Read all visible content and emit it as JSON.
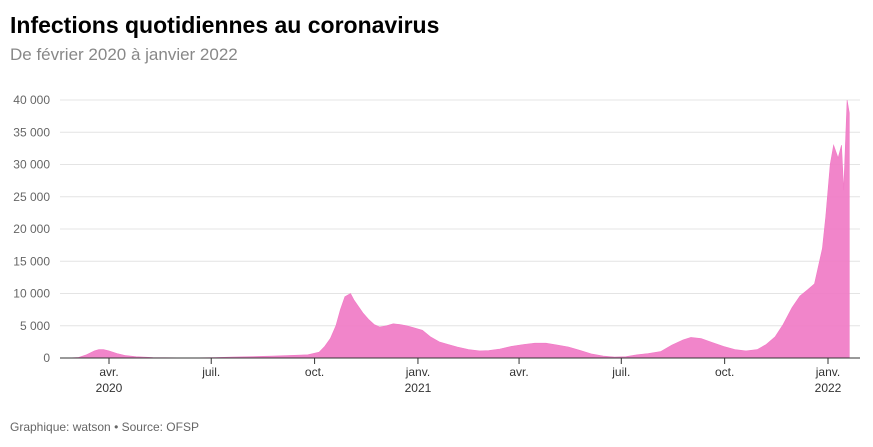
{
  "header": {
    "title": "Infections quotidiennes au coronavirus",
    "subtitle": "De février 2020 à janvier 2022"
  },
  "footer": {
    "credit": "Graphique: watson • Source: OFSP"
  },
  "colors": {
    "series": "#f07bc6",
    "grid": "#e4e4e4",
    "axis": "#333333"
  },
  "chart_data": {
    "type": "area",
    "title": "Infections quotidiennes au coronavirus",
    "subtitle": "De février 2020 à janvier 2022",
    "xlabel": "",
    "ylabel": "",
    "ylim": [
      0,
      42000
    ],
    "xlim": [
      "2020-02-24",
      "2022-01-20"
    ],
    "grid": true,
    "legend": "none",
    "y_ticks": [
      {
        "value": 0,
        "label": "0"
      },
      {
        "value": 5000,
        "label": "5 000"
      },
      {
        "value": 10000,
        "label": "10 000"
      },
      {
        "value": 15000,
        "label": "15 000"
      },
      {
        "value": 20000,
        "label": "20 000"
      },
      {
        "value": 25000,
        "label": "25 000"
      },
      {
        "value": 30000,
        "label": "30 000"
      },
      {
        "value": 35000,
        "label": "35 000"
      },
      {
        "value": 40000,
        "label": "40 000"
      }
    ],
    "x_ticks": [
      {
        "date": "2020-04-01",
        "label": "avr.",
        "sublabel": "2020"
      },
      {
        "date": "2020-07-01",
        "label": "juil.",
        "sublabel": ""
      },
      {
        "date": "2020-10-01",
        "label": "oct.",
        "sublabel": ""
      },
      {
        "date": "2021-01-01",
        "label": "janv.",
        "sublabel": "2021"
      },
      {
        "date": "2021-04-01",
        "label": "avr.",
        "sublabel": ""
      },
      {
        "date": "2021-07-01",
        "label": "juil.",
        "sublabel": ""
      },
      {
        "date": "2021-10-01",
        "label": "oct.",
        "sublabel": ""
      },
      {
        "date": "2022-01-01",
        "label": "janv.",
        "sublabel": "2022"
      }
    ],
    "series": [
      {
        "values": [
          [
            "2020-02-24",
            0
          ],
          [
            "2020-03-05",
            100
          ],
          [
            "2020-03-12",
            500
          ],
          [
            "2020-03-19",
            1100
          ],
          [
            "2020-03-23",
            1300
          ],
          [
            "2020-03-27",
            1300
          ],
          [
            "2020-04-01",
            1100
          ],
          [
            "2020-04-08",
            700
          ],
          [
            "2020-04-15",
            400
          ],
          [
            "2020-04-25",
            200
          ],
          [
            "2020-05-10",
            60
          ],
          [
            "2020-06-01",
            30
          ],
          [
            "2020-06-20",
            30
          ],
          [
            "2020-07-05",
            80
          ],
          [
            "2020-07-20",
            140
          ],
          [
            "2020-08-05",
            200
          ],
          [
            "2020-08-25",
            300
          ],
          [
            "2020-09-10",
            400
          ],
          [
            "2020-09-25",
            500
          ],
          [
            "2020-10-05",
            900
          ],
          [
            "2020-10-10",
            1800
          ],
          [
            "2020-10-15",
            3000
          ],
          [
            "2020-10-20",
            5000
          ],
          [
            "2020-10-24",
            7500
          ],
          [
            "2020-10-28",
            9500
          ],
          [
            "2020-11-02",
            10000
          ],
          [
            "2020-11-05",
            9000
          ],
          [
            "2020-11-09",
            8000
          ],
          [
            "2020-11-13",
            7000
          ],
          [
            "2020-11-18",
            6000
          ],
          [
            "2020-11-23",
            5200
          ],
          [
            "2020-11-28",
            4800
          ],
          [
            "2020-12-04",
            5000
          ],
          [
            "2020-12-10",
            5300
          ],
          [
            "2020-12-16",
            5200
          ],
          [
            "2020-12-22",
            5000
          ],
          [
            "2020-12-28",
            4700
          ],
          [
            "2021-01-05",
            4300
          ],
          [
            "2021-01-12",
            3300
          ],
          [
            "2021-01-20",
            2500
          ],
          [
            "2021-01-28",
            2100
          ],
          [
            "2021-02-05",
            1700
          ],
          [
            "2021-02-15",
            1300
          ],
          [
            "2021-02-25",
            1100
          ],
          [
            "2021-03-05",
            1150
          ],
          [
            "2021-03-15",
            1400
          ],
          [
            "2021-03-25",
            1800
          ],
          [
            "2021-04-05",
            2100
          ],
          [
            "2021-04-15",
            2300
          ],
          [
            "2021-04-25",
            2300
          ],
          [
            "2021-05-05",
            2000
          ],
          [
            "2021-05-15",
            1700
          ],
          [
            "2021-05-25",
            1200
          ],
          [
            "2021-06-05",
            600
          ],
          [
            "2021-06-15",
            300
          ],
          [
            "2021-06-25",
            150
          ],
          [
            "2021-07-05",
            200
          ],
          [
            "2021-07-15",
            500
          ],
          [
            "2021-07-25",
            700
          ],
          [
            "2021-08-05",
            1000
          ],
          [
            "2021-08-15",
            2000
          ],
          [
            "2021-08-25",
            2800
          ],
          [
            "2021-09-01",
            3200
          ],
          [
            "2021-09-10",
            3000
          ],
          [
            "2021-09-20",
            2400
          ],
          [
            "2021-09-30",
            1800
          ],
          [
            "2021-10-10",
            1300
          ],
          [
            "2021-10-20",
            1100
          ],
          [
            "2021-10-30",
            1300
          ],
          [
            "2021-11-07",
            2100
          ],
          [
            "2021-11-15",
            3300
          ],
          [
            "2021-11-22",
            5200
          ],
          [
            "2021-11-30",
            7800
          ],
          [
            "2021-12-07",
            9600
          ],
          [
            "2021-12-14",
            10600
          ],
          [
            "2021-12-20",
            11500
          ],
          [
            "2021-12-27",
            17000
          ],
          [
            "2021-12-30",
            22000
          ],
          [
            "2022-01-03",
            30000
          ],
          [
            "2022-01-06",
            33000
          ],
          [
            "2022-01-10",
            31000
          ],
          [
            "2022-01-13",
            33000
          ],
          [
            "2022-01-15",
            26000
          ],
          [
            "2022-01-18",
            40000
          ],
          [
            "2022-01-20",
            38000
          ]
        ]
      }
    ]
  }
}
